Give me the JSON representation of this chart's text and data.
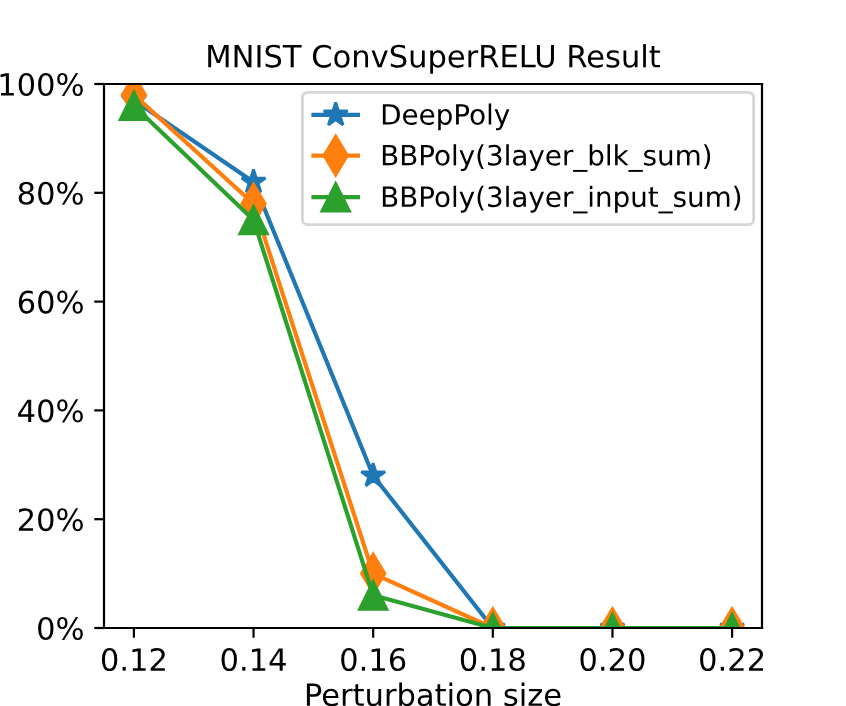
{
  "chart_data": {
    "type": "line",
    "title": "MNIST ConvSuperRELU Result",
    "xlabel": "Perturbation size",
    "x": [
      0.12,
      0.14,
      0.16,
      0.18,
      0.2,
      0.22
    ],
    "series": [
      {
        "name": "DeepPoly",
        "color": "#1f77b4",
        "marker": "star",
        "values": [
          97,
          82,
          28,
          0,
          0,
          0
        ]
      },
      {
        "name": "BBPoly(3layer_blk_sum)",
        "color": "#ff7f0e",
        "marker": "diamond",
        "values": [
          98,
          78,
          10,
          0,
          0,
          0
        ]
      },
      {
        "name": "BBPoly(3layer_input_sum)",
        "color": "#2ca02c",
        "marker": "triangle",
        "values": [
          96,
          75,
          6,
          0,
          0,
          0
        ]
      }
    ],
    "xlim": [
      0.115,
      0.225
    ],
    "ylim": [
      0,
      100
    ],
    "xticks": [
      {
        "value": 0.12,
        "label": "0.12"
      },
      {
        "value": 0.14,
        "label": "0.14"
      },
      {
        "value": 0.16,
        "label": "0.16"
      },
      {
        "value": 0.18,
        "label": "0.18"
      },
      {
        "value": 0.2,
        "label": "0.20"
      },
      {
        "value": 0.22,
        "label": "0.22"
      }
    ],
    "yticks": [
      {
        "value": 0,
        "label": "0%"
      },
      {
        "value": 20,
        "label": "20%"
      },
      {
        "value": 40,
        "label": "40%"
      },
      {
        "value": 60,
        "label": "60%"
      },
      {
        "value": 80,
        "label": "80%"
      },
      {
        "value": 100,
        "label": "100%"
      }
    ],
    "legend": "top right",
    "grid": false,
    "line_style": "solid"
  }
}
